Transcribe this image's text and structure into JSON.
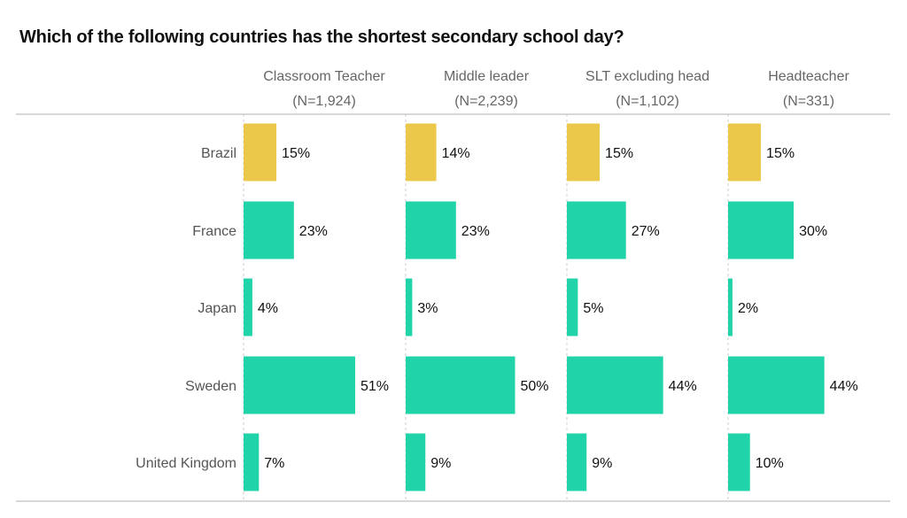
{
  "chart_data": {
    "type": "bar",
    "orientation": "horizontal",
    "title": "Which of the following countries has the shortest secondary school day?",
    "categories": [
      "Brazil",
      "France",
      "Japan",
      "Sweden",
      "United Kingdom"
    ],
    "series": [
      {
        "name": "Classroom Teacher",
        "n_label": "(N=1,924)",
        "values": [
          15,
          23,
          4,
          51,
          7
        ]
      },
      {
        "name": "Middle leader",
        "n_label": "(N=2,239)",
        "values": [
          14,
          23,
          3,
          50,
          9
        ]
      },
      {
        "name": "SLT excluding head",
        "n_label": "(N=1,102)",
        "values": [
          15,
          27,
          5,
          44,
          9
        ]
      },
      {
        "name": "Headteacher",
        "n_label": "(N=331)",
        "values": [
          15,
          30,
          2,
          44,
          10
        ]
      }
    ],
    "value_suffix": "%",
    "highlight_category": "Brazil",
    "colors": {
      "highlight": "#EBC84A",
      "default": "#20D3A8"
    },
    "xlim": [
      0,
      100
    ],
    "grid": false,
    "legend": "none"
  }
}
